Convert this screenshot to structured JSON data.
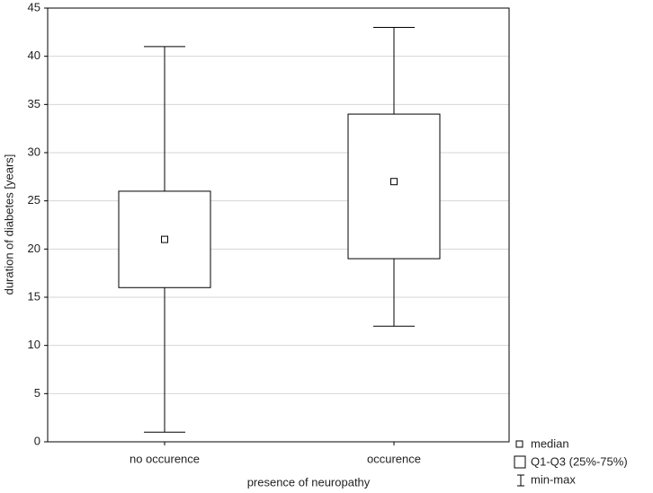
{
  "chart_data": {
    "type": "box",
    "x_label": "presence of neuropathy",
    "y_label": "duration of diabetes [years]",
    "categories": [
      "no occurence",
      "occurence"
    ],
    "min": [
      1,
      12
    ],
    "q1": [
      16,
      19
    ],
    "median": [
      21,
      27
    ],
    "q3": [
      26,
      34
    ],
    "max": [
      41,
      43
    ],
    "ylim": [
      0,
      45
    ],
    "yticks": [
      0,
      5,
      10,
      15,
      20,
      25,
      30,
      35,
      40,
      45
    ],
    "grid": true,
    "legend": [
      "median",
      "Q1-Q3 (25%-75%)",
      "min-max"
    ]
  }
}
